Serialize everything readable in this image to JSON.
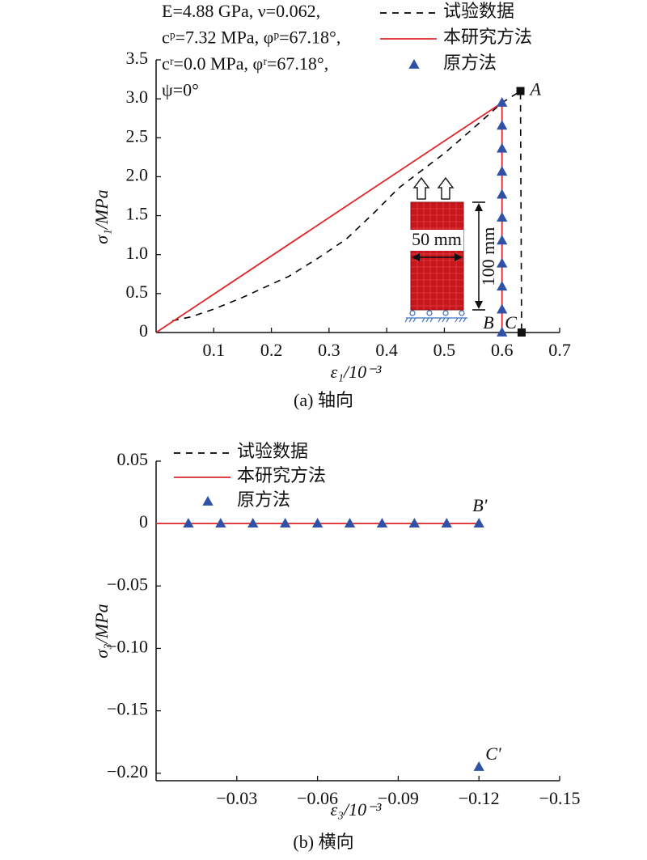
{
  "chart_data": [
    {
      "type": "line",
      "annotations": [
        "E=4.88 GPa, ν=0.062,",
        "cᵖ=7.32 MPa, φᵖ=67.18°,",
        "cʳ=0.0 MPa, φʳ=67.18°,",
        "ψ=0°"
      ],
      "x_label": "ε₁/10⁻³",
      "y_label": "σ₁/MPa",
      "caption": "(a) 轴向",
      "xlim": [
        0,
        0.7
      ],
      "xticks": [
        0.1,
        0.2,
        0.3,
        0.4,
        0.5,
        0.6,
        0.7
      ],
      "ylim": [
        0,
        3.5
      ],
      "yticks": [
        0,
        0.5,
        {
          "value": 1,
          "label": "1.0"
        },
        1.5,
        {
          "value": 2,
          "label": "2.0"
        },
        2.5,
        {
          "value": 3,
          "label": "3.0"
        },
        3.5
      ],
      "legend": "top-right",
      "series": [
        {
          "name": "试验数据",
          "style": "dashed",
          "color": "#000000",
          "x": [
            0.028,
            0.06,
            0.1,
            0.15,
            0.2,
            0.23,
            0.28,
            0.33,
            0.38,
            0.42,
            0.45,
            0.5,
            0.55,
            0.6,
            0.632,
            0.634
          ],
          "values": [
            0.15,
            0.2,
            0.3,
            0.45,
            0.62,
            0.72,
            0.95,
            1.2,
            1.55,
            1.85,
            2.02,
            2.3,
            2.62,
            2.95,
            3.1,
            0
          ]
        },
        {
          "name": "本研究方法",
          "style": "solid",
          "color": "#e0262b",
          "x": [
            0,
            0.6,
            0.6
          ],
          "values": [
            0,
            2.95,
            0
          ]
        },
        {
          "name": "原方法",
          "style": "triangle",
          "color": "#2f52a8",
          "x": [
            0.6,
            0.6,
            0.6,
            0.6,
            0.6,
            0.6,
            0.6,
            0.6,
            0.6,
            0.6,
            0.6
          ],
          "values": [
            0,
            0.295,
            0.59,
            0.885,
            1.18,
            1.475,
            1.77,
            2.065,
            2.36,
            2.655,
            2.95
          ]
        }
      ],
      "points": [
        {
          "label": "A",
          "x": 0.632,
          "y": 3.1,
          "marker": "square"
        },
        {
          "label": "B",
          "x": 0.6,
          "y": 0
        },
        {
          "label": "C",
          "x": 0.634,
          "y": 0,
          "marker": "square"
        }
      ],
      "inset_labels": [
        "50 mm",
        "100 mm"
      ]
    },
    {
      "type": "line",
      "x_label": "ε₃/10⁻³",
      "y_label": "σ₃/MPa",
      "caption": "(b) 横向",
      "xlim": [
        0,
        -0.15
      ],
      "xticks": [
        {
          "value": -0.03,
          "label": "−0.03"
        },
        {
          "value": -0.06,
          "label": "−0.06"
        },
        {
          "value": -0.09,
          "label": "−0.09"
        },
        {
          "value": -0.12,
          "label": "−0.12"
        },
        {
          "value": -0.15,
          "label": "−0.15"
        }
      ],
      "ylim": [
        -0.206,
        0.05
      ],
      "yticks": [
        0.05,
        0,
        {
          "value": -0.05,
          "label": "−0.05"
        },
        {
          "value": -0.1,
          "label": "−0.10"
        },
        {
          "value": -0.15,
          "label": "−0.15"
        },
        {
          "value": -0.2,
          "label": "−0.20"
        }
      ],
      "legend": "top-left",
      "series": [
        {
          "name": "试验数据",
          "style": "dashed",
          "color": "#000000",
          "x": [],
          "values": []
        },
        {
          "name": "本研究方法",
          "style": "solid",
          "color": "#e0262b",
          "x": [
            0,
            -0.12
          ],
          "values": [
            0,
            0
          ]
        },
        {
          "name": "原方法",
          "style": "triangle",
          "color": "#2f52a8",
          "x": [
            -0.012,
            -0.024,
            -0.036,
            -0.048,
            -0.06,
            -0.072,
            -0.084,
            -0.096,
            -0.108,
            -0.12,
            -0.12
          ],
          "values": [
            0,
            0,
            0,
            0,
            0,
            0,
            0,
            0,
            0,
            0,
            -0.195
          ]
        }
      ],
      "points": [
        {
          "label": "B'",
          "x": -0.12,
          "y": 0
        },
        {
          "label": "C'",
          "x": -0.12,
          "y": -0.195
        }
      ]
    }
  ]
}
